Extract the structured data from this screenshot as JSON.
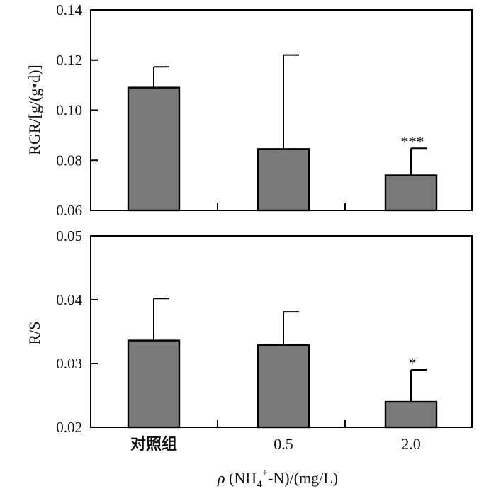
{
  "chart_data": [
    {
      "type": "bar",
      "categories": [
        "对照组",
        "0.5",
        "2.0"
      ],
      "values": [
        0.109,
        0.0845,
        0.074
      ],
      "errors": [
        0.0083,
        0.0375,
        0.0108
      ],
      "significance": [
        "",
        "",
        "***"
      ],
      "ylabel": "RGR/[g/(g•d)]",
      "ylim": [
        0.06,
        0.14
      ],
      "yticks": [
        0.06,
        0.08,
        0.1,
        0.12,
        0.14
      ],
      "ytick_labels": [
        "0.06",
        "0.08",
        "0.10",
        "0.12",
        "0.14"
      ],
      "color": "#7a7a7a"
    },
    {
      "type": "bar",
      "categories": [
        "对照组",
        "0.5",
        "2.0"
      ],
      "values": [
        0.0336,
        0.0329,
        0.024
      ],
      "errors": [
        0.0066,
        0.0052,
        0.005
      ],
      "significance": [
        "",
        "",
        "*"
      ],
      "ylabel": "R/S",
      "ylim": [
        0.02,
        0.05
      ],
      "yticks": [
        0.02,
        0.03,
        0.04,
        0.05
      ],
      "ytick_labels": [
        "0.02",
        "0.03",
        "0.04",
        "0.05"
      ],
      "color": "#7a7a7a"
    }
  ],
  "xlabel": {
    "prefix": "ρ",
    "main": " (NH",
    "sub": "4",
    "sup": "+",
    "rest": "-N)/(mg/L)"
  }
}
